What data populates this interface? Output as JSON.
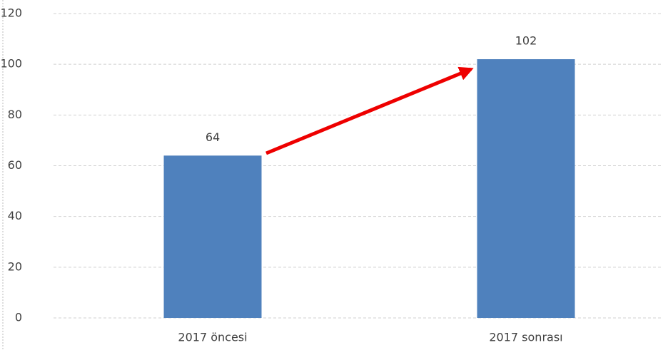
{
  "chart_data": {
    "type": "bar",
    "categories": [
      "2017 öncesi",
      "2017 sonrası"
    ],
    "values": [
      64,
      102
    ],
    "color": "#4f81bd",
    "ylim": [
      0,
      120
    ],
    "yticks": [
      0,
      20,
      40,
      60,
      80,
      100,
      120
    ],
    "grid": true
  }
}
